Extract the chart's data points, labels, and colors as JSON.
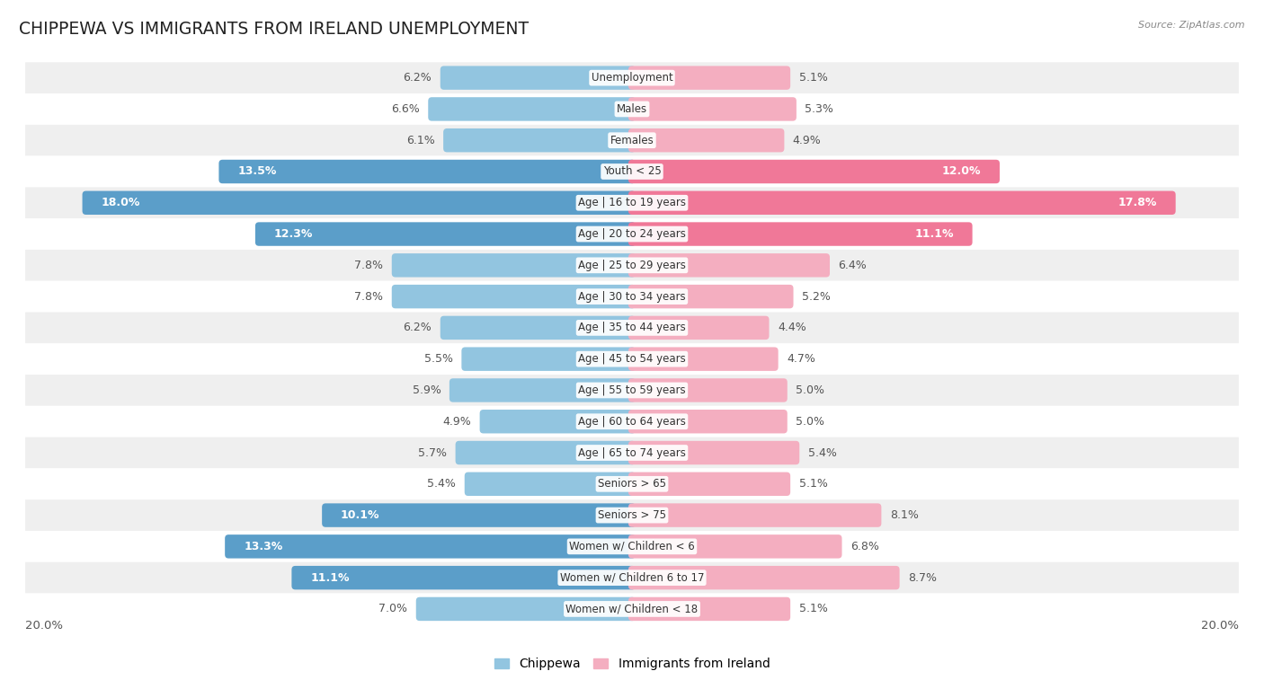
{
  "title": "CHIPPEWA VS IMMIGRANTS FROM IRELAND UNEMPLOYMENT",
  "source": "Source: ZipAtlas.com",
  "categories": [
    "Unemployment",
    "Males",
    "Females",
    "Youth < 25",
    "Age | 16 to 19 years",
    "Age | 20 to 24 years",
    "Age | 25 to 29 years",
    "Age | 30 to 34 years",
    "Age | 35 to 44 years",
    "Age | 45 to 54 years",
    "Age | 55 to 59 years",
    "Age | 60 to 64 years",
    "Age | 65 to 74 years",
    "Seniors > 65",
    "Seniors > 75",
    "Women w/ Children < 6",
    "Women w/ Children 6 to 17",
    "Women w/ Children < 18"
  ],
  "chippewa": [
    6.2,
    6.6,
    6.1,
    13.5,
    18.0,
    12.3,
    7.8,
    7.8,
    6.2,
    5.5,
    5.9,
    4.9,
    5.7,
    5.4,
    10.1,
    13.3,
    11.1,
    7.0
  ],
  "ireland": [
    5.1,
    5.3,
    4.9,
    12.0,
    17.8,
    11.1,
    6.4,
    5.2,
    4.4,
    4.7,
    5.0,
    5.0,
    5.4,
    5.1,
    8.1,
    6.8,
    8.7,
    5.1
  ],
  "chippewa_color_normal": "#92c5e0",
  "chippewa_color_bold": "#5b9ec9",
  "ireland_color_normal": "#f4aec0",
  "ireland_color_bold": "#f07898",
  "row_bg_light": "#efefef",
  "row_bg_white": "#ffffff",
  "max_val": 20.0,
  "legend_chippewa": "Chippewa",
  "legend_ireland": "Immigrants from Ireland",
  "label_fontsize": 9.0,
  "title_fontsize": 13.5,
  "bold_threshold_chip": 10.0,
  "bold_threshold_ire": 10.0
}
